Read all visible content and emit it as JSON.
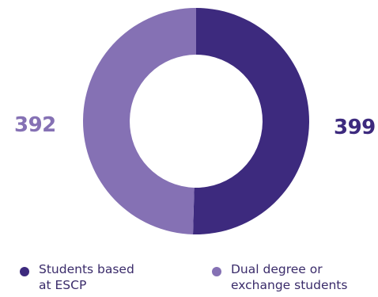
{
  "chart_data": {
    "type": "pie",
    "donut": true,
    "title": "",
    "categories": [
      "Students based at ESCP",
      "Dual degree or exchange students"
    ],
    "values": [
      399,
      392
    ],
    "value_labels": [
      "399",
      "392"
    ],
    "legend": {
      "placement": "bottom",
      "entries": [
        {
          "line1": "Students based",
          "line2": "at ESCP"
        },
        {
          "line1": "Dual degree or",
          "line2": "exchange students"
        }
      ]
    },
    "colors": [
      "#3d2a7e",
      "#8571b4"
    ]
  }
}
